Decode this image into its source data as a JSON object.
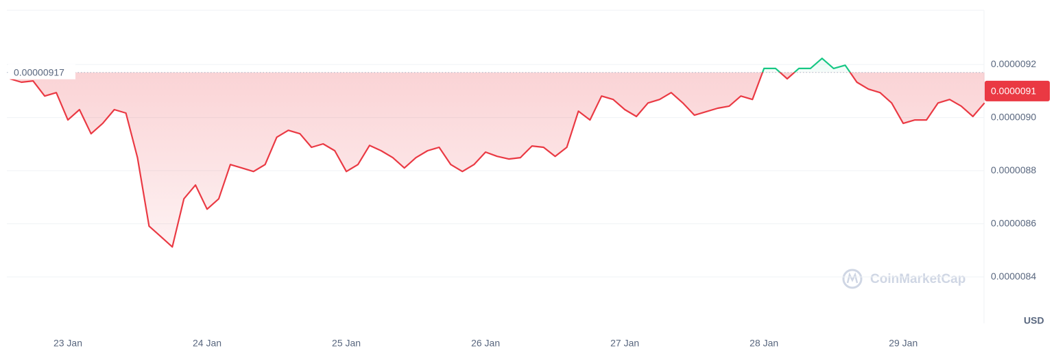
{
  "chart_data": {
    "type": "line",
    "watermark": "CoinMarketCap",
    "currency_label": "USD",
    "baseline": 9.17e-06,
    "current_price": 9.1e-06,
    "ylim": [
      8.225e-06,
      9.404e-06
    ],
    "yticks": [
      8.4e-06,
      8.6e-06,
      8.8e-06,
      {
        "value": 9e-06,
        "label": "0.0000090"
      },
      9.2e-06
    ],
    "grid": true,
    "up_color": "#16c784",
    "down_color": "#ea3943",
    "categories": [
      null,
      null,
      null,
      null,
      null,
      "23 Jan",
      null,
      null,
      null,
      null,
      null,
      null,
      null,
      null,
      null,
      null,
      null,
      "24 Jan",
      null,
      null,
      null,
      null,
      null,
      null,
      null,
      null,
      null,
      null,
      null,
      "25 Jan",
      null,
      null,
      null,
      null,
      null,
      null,
      null,
      null,
      null,
      null,
      null,
      "26 Jan",
      null,
      null,
      null,
      null,
      null,
      null,
      null,
      null,
      null,
      null,
      null,
      "27 Jan",
      null,
      null,
      null,
      null,
      null,
      null,
      null,
      null,
      null,
      null,
      null,
      "28 Jan",
      null,
      null,
      null,
      null,
      null,
      null,
      null,
      null,
      null,
      null,
      null,
      "29 Jan",
      null,
      null,
      null,
      null,
      null,
      null,
      null
    ],
    "values": [
      9.146e-06,
      9.133e-06,
      9.138e-06,
      9.081e-06,
      9.094e-06,
      8.991e-06,
      9.03e-06,
      8.939e-06,
      8.978e-06,
      9.03e-06,
      9.017e-06,
      8.849e-06,
      8.591e-06,
      8.552e-06,
      8.513e-06,
      8.694e-06,
      8.746e-06,
      8.655e-06,
      8.694e-06,
      8.823e-06,
      8.81e-06,
      8.797e-06,
      8.823e-06,
      8.926e-06,
      8.952e-06,
      8.939e-06,
      8.888e-06,
      8.901e-06,
      8.875e-06,
      8.797e-06,
      8.823e-06,
      8.895e-06,
      8.875e-06,
      8.849e-06,
      8.81e-06,
      8.849e-06,
      8.875e-06,
      8.888e-06,
      8.823e-06,
      8.797e-06,
      8.823e-06,
      8.87e-06,
      8.854e-06,
      8.844e-06,
      8.849e-06,
      8.893e-06,
      8.888e-06,
      8.854e-06,
      8.888e-06,
      9.024e-06,
      8.991e-06,
      9.081e-06,
      9.068e-06,
      9.03e-06,
      9.004e-06,
      9.055e-06,
      9.068e-06,
      9.094e-06,
      9.055e-06,
      9.009e-06,
      9.022e-06,
      9.035e-06,
      9.043e-06,
      9.081e-06,
      9.068e-06,
      9.185e-06,
      9.185e-06,
      9.146e-06,
      9.185e-06,
      9.185e-06,
      9.223e-06,
      9.185e-06,
      9.197e-06,
      9.133e-06,
      9.107e-06,
      9.094e-06,
      9.055e-06,
      8.978e-06,
      8.991e-06,
      8.991e-06,
      9.055e-06,
      9.068e-06,
      9.043e-06,
      9.004e-06,
      9.055e-06
    ]
  }
}
